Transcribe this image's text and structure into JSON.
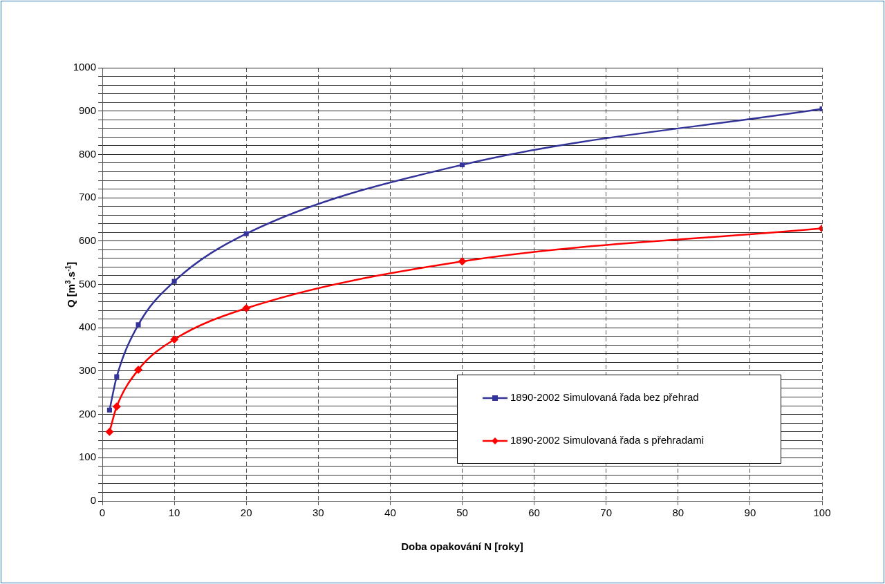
{
  "chart_data": {
    "type": "line",
    "xlabel": "Doba opakování N [roky]",
    "ylabel": "Q [m$^{3}$.s$^{-1}$]",
    "x": [
      1,
      2,
      5,
      10,
      20,
      50,
      100
    ],
    "series": [
      {
        "name": "1890-2002 Simulovaná řada bez přehrad",
        "color": "#333399",
        "marker": "square",
        "values": [
          210,
          287,
          407,
          507,
          617,
          776,
          905
        ]
      },
      {
        "name": "1890-2002 Simulovaná řada s přehradami",
        "color": "#ff0000",
        "marker": "diamond",
        "values": [
          160,
          218,
          303,
          373,
          445,
          553,
          629
        ]
      }
    ],
    "xlim": [
      0,
      100
    ],
    "xticks": [
      0,
      10,
      20,
      30,
      40,
      50,
      60,
      70,
      80,
      90,
      100
    ],
    "ylim": [
      0,
      1000
    ],
    "yticks": [
      0,
      {
        "value": 20,
        "label": null
      },
      {
        "value": 40,
        "label": null
      },
      {
        "value": 60,
        "label": null
      },
      {
        "value": 80,
        "label": null
      },
      100,
      {
        "value": 120,
        "label": null
      },
      {
        "value": 140,
        "label": null
      },
      {
        "value": 160,
        "label": null
      },
      {
        "value": 180,
        "label": null
      },
      200,
      {
        "value": 220,
        "label": null
      },
      {
        "value": 240,
        "label": null
      },
      {
        "value": 260,
        "label": null
      },
      {
        "value": 280,
        "label": null
      },
      300,
      {
        "value": 320,
        "label": null
      },
      {
        "value": 340,
        "label": null
      },
      {
        "value": 360,
        "label": null
      },
      {
        "value": 380,
        "label": null
      },
      400,
      {
        "value": 420,
        "label": null
      },
      {
        "value": 440,
        "label": null
      },
      {
        "value": 460,
        "label": null
      },
      {
        "value": 480,
        "label": null
      },
      500,
      {
        "value": 520,
        "label": null
      },
      {
        "value": 540,
        "label": null
      },
      {
        "value": 560,
        "label": null
      },
      {
        "value": 580,
        "label": null
      },
      600,
      {
        "value": 620,
        "label": null
      },
      {
        "value": 640,
        "label": null
      },
      {
        "value": 660,
        "label": null
      },
      {
        "value": 680,
        "label": null
      },
      700,
      {
        "value": 720,
        "label": null
      },
      {
        "value": 740,
        "label": null
      },
      {
        "value": 760,
        "label": null
      },
      {
        "value": 780,
        "label": null
      },
      800,
      {
        "value": 820,
        "label": null
      },
      {
        "value": 840,
        "label": null
      },
      {
        "value": 860,
        "label": null
      },
      {
        "value": 880,
        "label": null
      },
      900,
      {
        "value": 920,
        "label": null
      },
      {
        "value": 940,
        "label": null
      },
      {
        "value": 960,
        "label": null
      },
      {
        "value": 980,
        "label": null
      },
      1000
    ],
    "grid": true,
    "legend": "bottom right",
    "line_style": "solid"
  }
}
